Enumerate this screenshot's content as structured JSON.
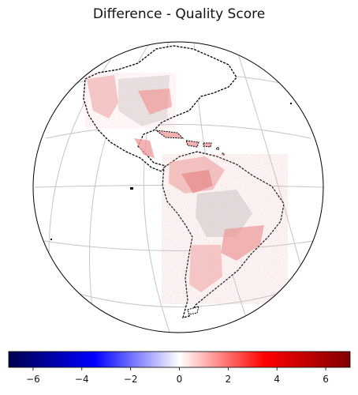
{
  "title": "Difference - Quality Score",
  "colorbar": {
    "colormap": "seismic",
    "range": [
      -7,
      7
    ],
    "ticks": [
      "−6",
      "−4",
      "−2",
      "0",
      "2",
      "4",
      "6"
    ],
    "tick_values": [
      -6,
      -4,
      -2,
      0,
      2,
      4,
      6
    ],
    "colors": {
      "low": "#00004c",
      "mid_low": "#0000ff",
      "center": "#ffffff",
      "mid_high": "#ff0000",
      "high": "#800000"
    }
  },
  "map": {
    "projection": "orthographic",
    "region": "Americas",
    "graticule": true,
    "coastline_style": "dashed",
    "difference_color": "#e05050",
    "missing_color": "#b8b8b8"
  }
}
